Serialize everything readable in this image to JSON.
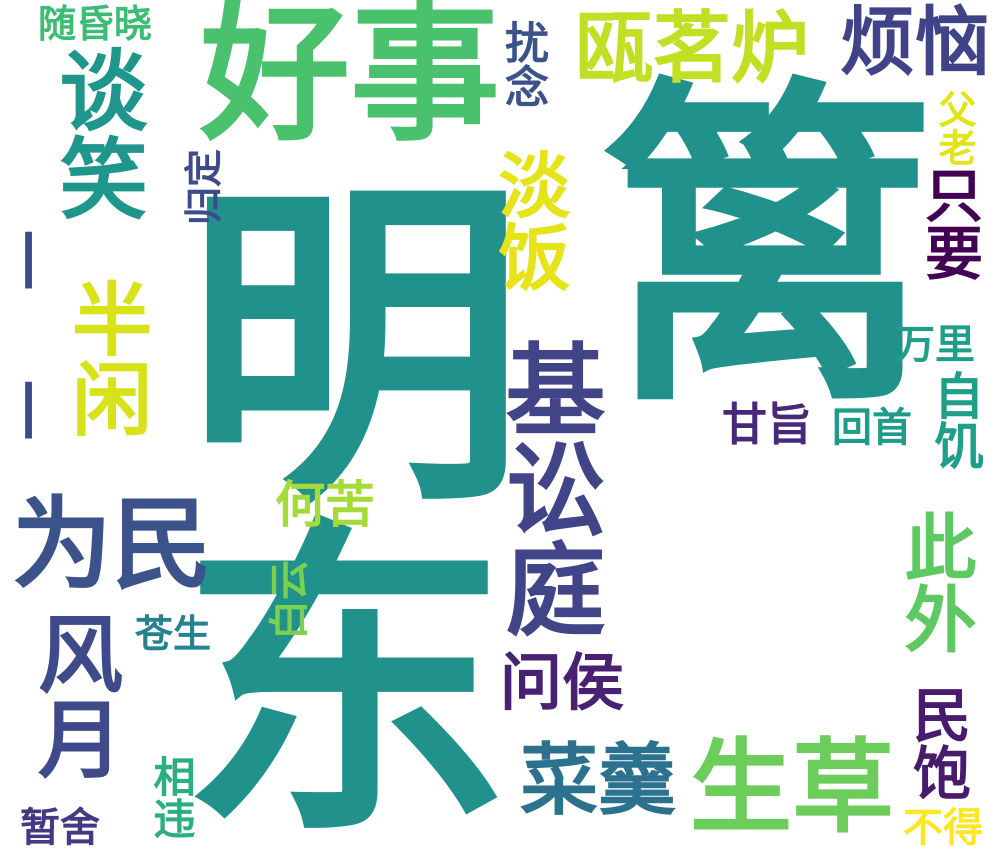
{
  "words": [
    {
      "id": "w01",
      "text": "东",
      "color": "#21918c"
    },
    {
      "id": "w02",
      "text": "明",
      "color": "#21918c"
    },
    {
      "id": "w03",
      "text": "篱",
      "color": "#21918c"
    },
    {
      "id": "w04",
      "text": "好事",
      "color": "#4ac16d"
    },
    {
      "id": "w05",
      "text": "谈笑",
      "color": "#1f968b"
    },
    {
      "id": "w06",
      "text": "半闲",
      "color": "#d8e219"
    },
    {
      "id": "w07",
      "text": "为民",
      "color": "#3b528b"
    },
    {
      "id": "w08",
      "text": "风月",
      "color": "#3e4a89"
    },
    {
      "id": "w09",
      "text": "基讼庭",
      "color": "#414487"
    },
    {
      "id": "w10",
      "text": "瓯茗炉",
      "color": "#c2df23"
    },
    {
      "id": "w11",
      "text": "烦恼",
      "color": "#404387"
    },
    {
      "id": "w12",
      "text": "淡饭",
      "color": "#e6e419"
    },
    {
      "id": "w13",
      "text": "扰念",
      "color": "#3b528b"
    },
    {
      "id": "w14",
      "text": "只要",
      "color": "#440154"
    },
    {
      "id": "w15",
      "text": "父老",
      "color": "#e2e418"
    },
    {
      "id": "w16",
      "text": "生草",
      "color": "#6ccd5a"
    },
    {
      "id": "w17",
      "text": "菜羹",
      "color": "#2c728e"
    },
    {
      "id": "w18",
      "text": "此外",
      "color": "#5ec962"
    },
    {
      "id": "w19",
      "text": "问侯",
      "color": "#482173"
    },
    {
      "id": "w20",
      "text": "民饱",
      "color": "#481b6d"
    },
    {
      "id": "w21",
      "text": "自饥",
      "color": "#1f9e89"
    },
    {
      "id": "w22",
      "text": "何苦",
      "color": "#a5db36"
    },
    {
      "id": "w23",
      "text": "白云",
      "color": "#7ad151"
    },
    {
      "id": "w24",
      "text": "苍生",
      "color": "#26828e"
    },
    {
      "id": "w25",
      "text": "万里",
      "color": "#1f9e89"
    },
    {
      "id": "w26",
      "text": "回首",
      "color": "#1e9c89"
    },
    {
      "id": "w27",
      "text": "甘旨",
      "color": "#482878"
    },
    {
      "id": "w28",
      "text": "随昏晓",
      "color": "#3dbc74"
    },
    {
      "id": "w29",
      "text": "归定",
      "color": "#3e4a89"
    },
    {
      "id": "w30",
      "text": "相违",
      "color": "#2ab07f"
    },
    {
      "id": "w31",
      "text": "暂舍",
      "color": "#443983"
    },
    {
      "id": "w32",
      "text": "不得",
      "color": "#fde725"
    },
    {
      "id": "w33",
      "text": "一",
      "color": "#3e4a89"
    },
    {
      "id": "w34",
      "text": "一",
      "color": "#3e4a89"
    }
  ]
}
